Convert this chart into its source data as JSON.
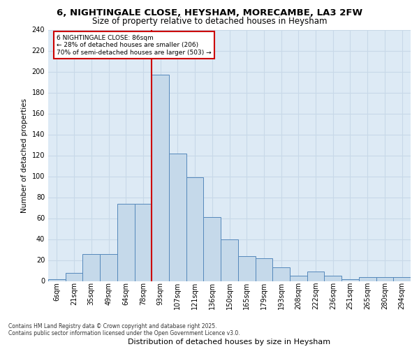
{
  "title_line1": "6, NIGHTINGALE CLOSE, HEYSHAM, MORECAMBE, LA3 2FW",
  "title_line2": "Size of property relative to detached houses in Heysham",
  "xlabel": "Distribution of detached houses by size in Heysham",
  "ylabel": "Number of detached properties",
  "bar_categories": [
    "6sqm",
    "21sqm",
    "35sqm",
    "49sqm",
    "64sqm",
    "78sqm",
    "93sqm",
    "107sqm",
    "121sqm",
    "136sqm",
    "150sqm",
    "165sqm",
    "179sqm",
    "193sqm",
    "208sqm",
    "222sqm",
    "236sqm",
    "251sqm",
    "265sqm",
    "280sqm",
    "294sqm"
  ],
  "bar_values": [
    2,
    8,
    26,
    26,
    74,
    74,
    197,
    122,
    99,
    61,
    40,
    24,
    22,
    13,
    5,
    9,
    5,
    2,
    4,
    4,
    4
  ],
  "bar_color": "#c5d9ea",
  "bar_edge_color": "#5588bb",
  "grid_color": "#c8d8e8",
  "bg_color": "#ddeaf5",
  "vline_x_index": 6,
  "vline_color": "#cc0000",
  "annotation_text": "6 NIGHTINGALE CLOSE: 86sqm\n← 28% of detached houses are smaller (206)\n70% of semi-detached houses are larger (503) →",
  "annotation_box_color": "#ffffff",
  "annotation_border_color": "#cc0000",
  "footnote": "Contains HM Land Registry data © Crown copyright and database right 2025.\nContains public sector information licensed under the Open Government Licence v3.0.",
  "ylim": [
    0,
    240
  ],
  "yticks": [
    0,
    20,
    40,
    60,
    80,
    100,
    120,
    140,
    160,
    180,
    200,
    220,
    240
  ],
  "title_fontsize": 9.5,
  "subtitle_fontsize": 8.5,
  "ylabel_fontsize": 7.5,
  "xlabel_fontsize": 8.0,
  "tick_fontsize": 7.0,
  "annot_fontsize": 6.5,
  "footnote_fontsize": 5.5
}
